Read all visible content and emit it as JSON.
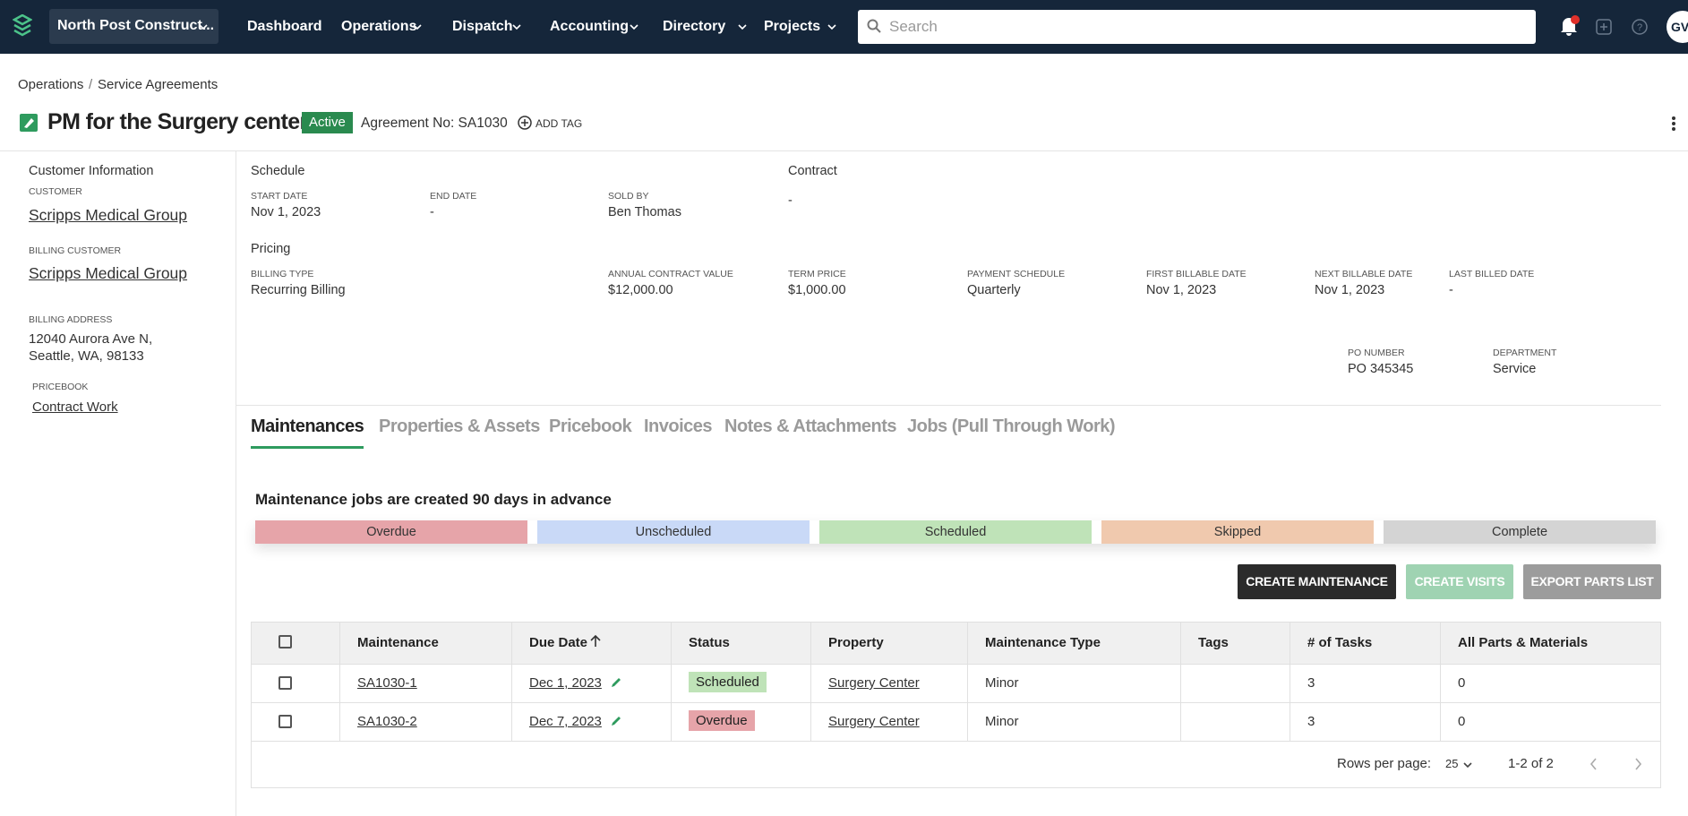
{
  "nav": {
    "org": "North Post Construct...",
    "menu": [
      "Dashboard",
      "Operations",
      "Dispatch",
      "Accounting",
      "Directory",
      "Projects"
    ],
    "search_placeholder": "Search",
    "avatar": "GV"
  },
  "breadcrumb": {
    "items": [
      "Operations",
      "Service Agreements"
    ],
    "separator": "/"
  },
  "header": {
    "title": "PM for the Surgery center",
    "status": "Active",
    "agreement": "Agreement No: SA1030",
    "add_tag": "ADD TAG"
  },
  "sidebar": {
    "heading": "Customer Information",
    "fields": [
      {
        "label": "CUSTOMER",
        "value": "Scripps Medical Group"
      },
      {
        "label": "BILLING CUSTOMER",
        "value": "Scripps Medical Group"
      },
      {
        "label": "BILLING ADDRESS",
        "value": "12040 Aurora Ave N, Seattle, WA, 98133"
      },
      {
        "label": "PRICEBOOK",
        "value": "Contract Work"
      }
    ]
  },
  "schedule": {
    "heading": "Schedule",
    "fields": [
      {
        "label": "START DATE",
        "value": "Nov 1, 2023"
      },
      {
        "label": "END DATE",
        "value": "-"
      },
      {
        "label": "SOLD BY",
        "value": "Ben Thomas"
      }
    ]
  },
  "contract": {
    "heading": "Contract",
    "value": "-"
  },
  "pricing": {
    "heading": "Pricing",
    "fields": [
      {
        "label": "BILLING TYPE",
        "value": "Recurring Billing"
      },
      {
        "label": "ANNUAL CONTRACT VALUE",
        "value": "$12,000.00"
      },
      {
        "label": "TERM PRICE",
        "value": "$1,000.00"
      },
      {
        "label": "PAYMENT SCHEDULE",
        "value": "Quarterly"
      },
      {
        "label": "FIRST BILLABLE DATE",
        "value": "Nov 1, 2023"
      },
      {
        "label": "NEXT BILLABLE DATE",
        "value": "Nov 1, 2023"
      },
      {
        "label": "LAST BILLED DATE",
        "value": "-"
      }
    ]
  },
  "extra": {
    "fields": [
      {
        "label": "PO NUMBER",
        "value": "PO 345345"
      },
      {
        "label": "DEPARTMENT",
        "value": "Service"
      }
    ]
  },
  "tabs": {
    "items": [
      "Maintenances",
      "Properties & Assets",
      "Pricebook",
      "Invoices",
      "Notes & Attachments",
      "Jobs (Pull Through Work)"
    ],
    "active": 0
  },
  "maintenances": {
    "notice": "Maintenance jobs are created 90 days in advance",
    "legend": [
      {
        "label": "Overdue",
        "color": "#e6a4a9"
      },
      {
        "label": "Unscheduled",
        "color": "#c9d9f7"
      },
      {
        "label": "Scheduled",
        "color": "#bfe3b8"
      },
      {
        "label": "Skipped",
        "color": "#f0c9ae"
      },
      {
        "label": "Complete",
        "color": "#d4d4d4"
      }
    ],
    "buttons": [
      "CREATE MAINTENANCE",
      "CREATE VISITS",
      "EXPORT PARTS LIST"
    ],
    "table": {
      "columns": [
        "Maintenance",
        "Due Date",
        "Status",
        "Property",
        "Maintenance Type",
        "Tags",
        "# of Tasks",
        "All Parts & Materials"
      ],
      "rows": [
        [
          "SA1030-1",
          "Dec 1, 2023",
          "Scheduled",
          "Surgery Center",
          "Minor",
          "",
          "3",
          "0"
        ],
        [
          "SA1030-2",
          "Dec 7, 2023",
          "Overdue",
          "Surgery Center",
          "Minor",
          "",
          "3",
          "0"
        ]
      ]
    },
    "pagination": {
      "rows_per_page_label": "Rows per page:",
      "rows_per_page": "25",
      "range": "1-2 of 2"
    }
  }
}
